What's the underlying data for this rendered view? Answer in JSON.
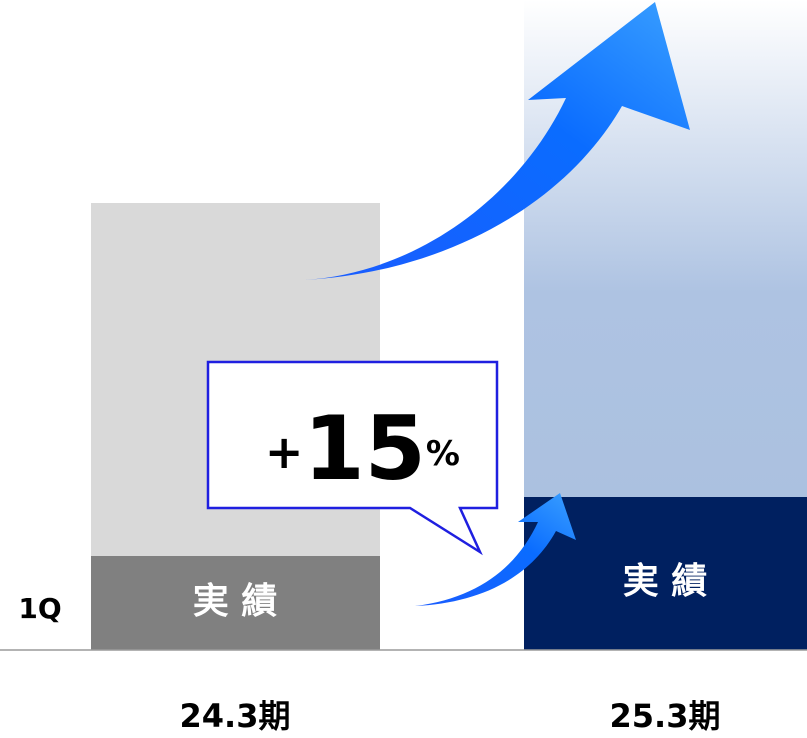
{
  "row_label": "1Q",
  "bars": [
    {
      "label": "実 績",
      "period": "24.3期"
    },
    {
      "label": "実 績",
      "period": "25.3期"
    }
  ],
  "callout": {
    "sign": "+",
    "number": "15",
    "unit": "%"
  }
}
